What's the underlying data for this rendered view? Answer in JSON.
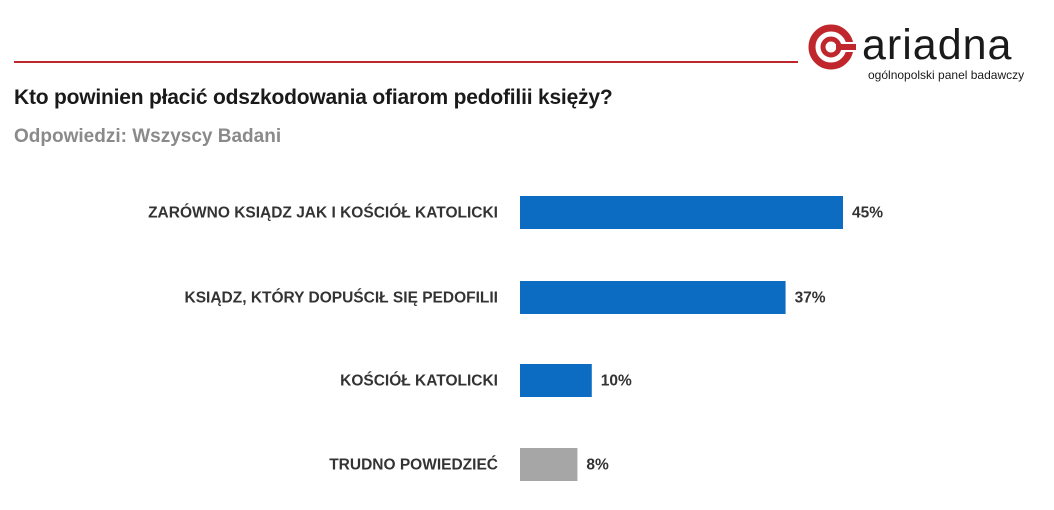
{
  "brand": {
    "name": "ariadna",
    "tagline": "ogólnopolski panel badawczy",
    "color": "#c0272d"
  },
  "header": {
    "title": "Kto powinien płacić odszkodowania ofiarom pedofilii księży?",
    "subtitle": "Odpowiedzi: Wszyscy Badani"
  },
  "chart_data": {
    "type": "bar",
    "orientation": "horizontal",
    "categories": [
      "ZARÓWNO KSIĄDZ JAK I KOŚCIÓŁ KATOLICKI",
      "KSIĄDZ, KTÓRY DOPUŚCIŁ SIĘ PEDOFILII",
      "KOŚCIÓŁ KATOLICKI",
      "TRUDNO POWIEDZIEĆ"
    ],
    "values": [
      45,
      37,
      10,
      8
    ],
    "value_labels": [
      "45%",
      "37%",
      "10%",
      "8%"
    ],
    "colors": [
      "#0b6cc2",
      "#0b6cc2",
      "#0b6cc2",
      "#a6a6a6"
    ],
    "unit": "%",
    "xlim": [
      0,
      45
    ],
    "grid": false,
    "title": "Kto powinien płacić odszkodowania ofiarom pedofilii księży?",
    "subtitle": "Odpowiedzi: Wszyscy Badani"
  }
}
